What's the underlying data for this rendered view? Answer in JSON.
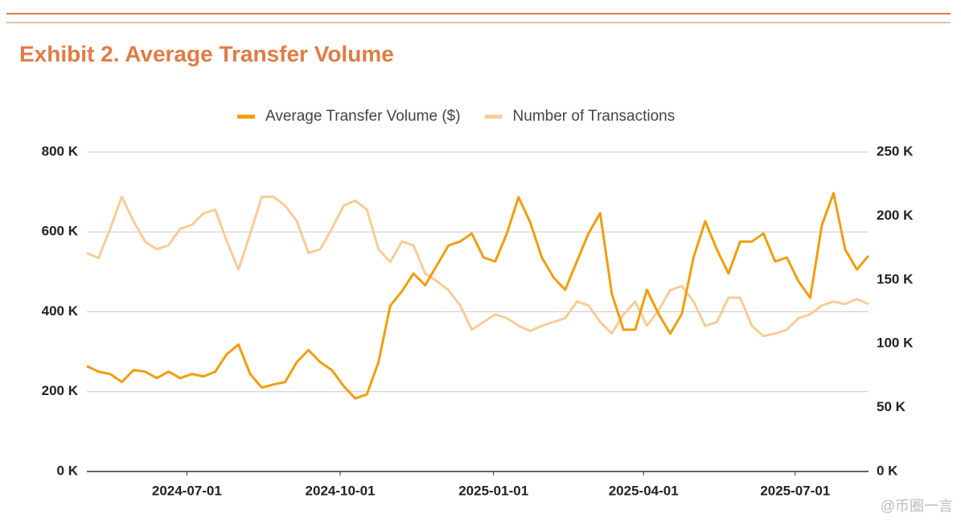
{
  "chart_data": {
    "type": "line",
    "title": "Exhibit 2. Average Transfer Volume",
    "x": [
      "2024-05-02",
      "2024-05-09",
      "2024-05-16",
      "2024-05-23",
      "2024-05-30",
      "2024-06-06",
      "2024-06-13",
      "2024-06-20",
      "2024-06-27",
      "2024-07-04",
      "2024-07-11",
      "2024-07-18",
      "2024-07-25",
      "2024-08-01",
      "2024-08-08",
      "2024-08-15",
      "2024-08-22",
      "2024-08-29",
      "2024-09-05",
      "2024-09-12",
      "2024-09-19",
      "2024-09-26",
      "2024-10-03",
      "2024-10-10",
      "2024-10-17",
      "2024-10-24",
      "2024-10-31",
      "2024-11-07",
      "2024-11-14",
      "2024-11-21",
      "2024-11-28",
      "2024-12-05",
      "2024-12-12",
      "2024-12-19",
      "2024-12-26",
      "2025-01-02",
      "2025-01-09",
      "2025-01-16",
      "2025-01-23",
      "2025-01-30",
      "2025-02-06",
      "2025-02-13",
      "2025-02-20",
      "2025-02-27",
      "2025-03-06",
      "2025-03-13",
      "2025-03-20",
      "2025-03-27",
      "2025-04-03",
      "2025-04-10",
      "2025-04-17",
      "2025-04-24",
      "2025-05-01",
      "2025-05-08",
      "2025-05-15",
      "2025-05-22",
      "2025-05-29",
      "2025-06-05",
      "2025-06-12",
      "2025-06-19",
      "2025-06-26",
      "2025-07-03",
      "2025-07-10",
      "2025-07-17",
      "2025-07-24",
      "2025-07-31",
      "2025-08-07",
      "2025-08-14"
    ],
    "xlim": [
      "2024-05-02",
      "2025-08-14"
    ],
    "xticks": [
      "2024-07-01",
      "2024-10-01",
      "2025-01-01",
      "2025-04-01",
      "2025-07-01"
    ],
    "ylim": [
      0,
      800000
    ],
    "yticks": [
      {
        "value": 0,
        "label": "0 K"
      },
      {
        "value": 200000,
        "label": "200 K"
      },
      {
        "value": 400000,
        "label": "400 K"
      },
      {
        "value": 600000,
        "label": "600 K"
      },
      {
        "value": 800000,
        "label": "800 K"
      }
    ],
    "y2lim": [
      0,
      250000
    ],
    "y2ticks": [
      {
        "value": 0,
        "label": "0 K"
      },
      {
        "value": 50000,
        "label": "50 K"
      },
      {
        "value": 100000,
        "label": "100 K"
      },
      {
        "value": 150000,
        "label": "150 K"
      },
      {
        "value": 200000,
        "label": "200 K"
      },
      {
        "value": 250000,
        "label": "250 K"
      }
    ],
    "grid": true,
    "legend": "top",
    "series": [
      {
        "name": "Average Transfer Volume ($)",
        "color": "#f29d0c",
        "values": [
          264000,
          250000,
          244000,
          224000,
          254000,
          250000,
          234000,
          250000,
          234000,
          244000,
          238000,
          250000,
          294000,
          318000,
          244000,
          210000,
          218000,
          224000,
          274000,
          304000,
          274000,
          254000,
          214000,
          183000,
          193000,
          274000,
          415000,
          451000,
          496000,
          466000,
          516000,
          566000,
          576000,
          596000,
          536000,
          526000,
          596000,
          687000,
          624000,
          536000,
          486000,
          455000,
          526000,
          596000,
          647000,
          445000,
          355000,
          355000,
          455000,
          395000,
          345000,
          395000,
          536000,
          627000,
          556000,
          496000,
          576000,
          576000,
          596000,
          526000,
          536000,
          476000,
          435000,
          617000,
          697000,
          556000,
          506000,
          540000
        ]
      },
      {
        "name": "Number of Transactions",
        "color": "#f8cc96",
        "axis": "y2",
        "values": [
          171000,
          167000,
          190000,
          215000,
          196000,
          180000,
          174000,
          177000,
          190000,
          193000,
          202000,
          205000,
          180000,
          158000,
          186000,
          215000,
          215000,
          208000,
          196000,
          171000,
          174000,
          190000,
          208000,
          212000,
          205000,
          174000,
          164000,
          180000,
          177000,
          155000,
          149000,
          142000,
          130000,
          111000,
          117000,
          123000,
          120000,
          114000,
          110000,
          114000,
          117000,
          120000,
          133000,
          130000,
          117000,
          108000,
          123000,
          133000,
          114000,
          126000,
          142000,
          145000,
          133000,
          114000,
          117000,
          136000,
          136000,
          114000,
          106000,
          108000,
          111000,
          120000,
          123000,
          130000,
          133000,
          131000,
          135000,
          131000
        ]
      }
    ]
  },
  "watermark": "@币圈一言"
}
